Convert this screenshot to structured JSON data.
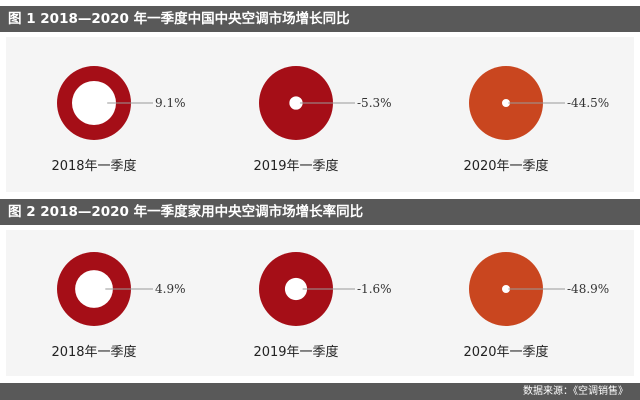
{
  "header": {
    "title1": "图 1   2018—2020 年一季度中国中央空调市场增长同比",
    "title2": "图 2   2018—2020 年一季度家用中央空调市场增长率同比"
  },
  "footer": {
    "source": "数据来源：《空调销售》"
  },
  "colors": {
    "dark_red": "#a50e17",
    "orange_red": "#c9461f",
    "leader_line": "#999999"
  },
  "chart_data": [
    {
      "type": "pie",
      "title": "图 1   2018—2020 年一季度中国中央空调市场增长同比",
      "categories": [
        "2018年一季度",
        "2019年一季度",
        "2020年一季度"
      ],
      "value_labels": [
        "9.1%",
        "-5.3%",
        "-44.5%"
      ],
      "values": [
        9.1,
        -5.3,
        -44.5
      ]
    },
    {
      "type": "pie",
      "title": "图 2   2018—2020 年一季度家用中央空调市场增长率同比",
      "categories": [
        "2018年一季度",
        "2019年一季度",
        "2020年一季度"
      ],
      "value_labels": [
        "4.9%",
        "-1.6%",
        "-48.9%"
      ],
      "values": [
        4.9,
        -1.6,
        -48.9
      ]
    }
  ]
}
